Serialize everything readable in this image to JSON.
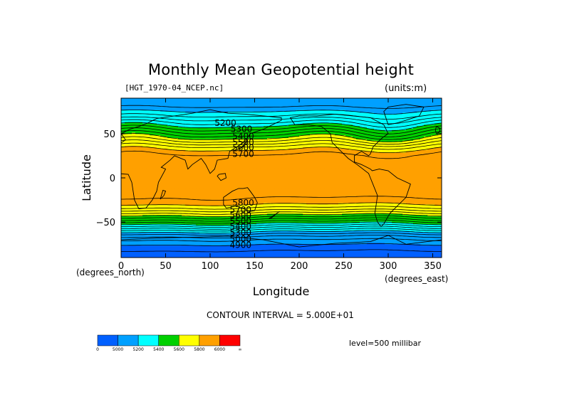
{
  "chart_data": {
    "type": "contour map (filled)",
    "title": "Monthly Mean Geopotential height",
    "file_label": "[HGT_1970-04_NCEP.nc]",
    "units_label": "(units:m)",
    "xlabel": "Longitude",
    "ylabel": "Latitude",
    "x_units_label": "(degrees_east)",
    "y_units_label": "(degrees_north)",
    "xlim": [
      0,
      360
    ],
    "ylim": [
      -90,
      90
    ],
    "x_ticks": [
      0,
      50,
      100,
      150,
      200,
      250,
      300,
      350
    ],
    "y_ticks": [
      50,
      0,
      -50
    ],
    "contour_interval_text": "CONTOUR INTERVAL = 5.000E+01",
    "level_text": "level=500 millibar",
    "colorbar": {
      "colors": [
        "#0060ff",
        "#00a0ff",
        "#00ffff",
        "#00d000",
        "#ffff00",
        "#ffa000",
        "#ff0000"
      ],
      "tick_labels": [
        "0",
        "5000",
        "5200",
        "5400",
        "5600",
        "5800",
        "6000",
        "∞"
      ],
      "bounds": [
        0,
        5000,
        5200,
        5400,
        5600,
        5800,
        6000,
        1000000000.0
      ]
    },
    "zonal_field": {
      "lat": [
        90,
        80,
        70,
        60,
        50,
        45,
        40,
        35,
        30,
        25,
        20,
        10,
        0,
        -10,
        -20,
        -25,
        -30,
        -35,
        -40,
        -45,
        -50,
        -55,
        -60,
        -65,
        -70,
        -80,
        -90
      ],
      "height_m": [
        5100,
        5150,
        5250,
        5380,
        5530,
        5600,
        5680,
        5760,
        5820,
        5860,
        5870,
        5880,
        5880,
        5880,
        5860,
        5840,
        5800,
        5730,
        5640,
        5540,
        5440,
        5330,
        5220,
        5120,
        5050,
        4960,
        4920
      ]
    },
    "contour_labels": [
      {
        "lon": 105,
        "lat": 62,
        "text": "5200"
      },
      {
        "lon": 123,
        "lat": 55,
        "text": "5300"
      },
      {
        "lon": 125,
        "lat": 47,
        "text": "5400"
      },
      {
        "lon": 125,
        "lat": 40,
        "text": "5500"
      },
      {
        "lon": 125,
        "lat": 34,
        "text": "5600"
      },
      {
        "lon": 125,
        "lat": 27,
        "text": "5700"
      },
      {
        "lon": 125,
        "lat": -28,
        "text": "5800"
      },
      {
        "lon": 122,
        "lat": -36,
        "text": "5700"
      },
      {
        "lon": 122,
        "lat": -42,
        "text": "5600"
      },
      {
        "lon": 122,
        "lat": -49,
        "text": "5500"
      },
      {
        "lon": 122,
        "lat": -55,
        "text": "5400"
      },
      {
        "lon": 122,
        "lat": -62,
        "text": "5300"
      },
      {
        "lon": 122,
        "lat": -69,
        "text": "5000"
      },
      {
        "lon": 122,
        "lat": -76,
        "text": "4900"
      }
    ]
  }
}
